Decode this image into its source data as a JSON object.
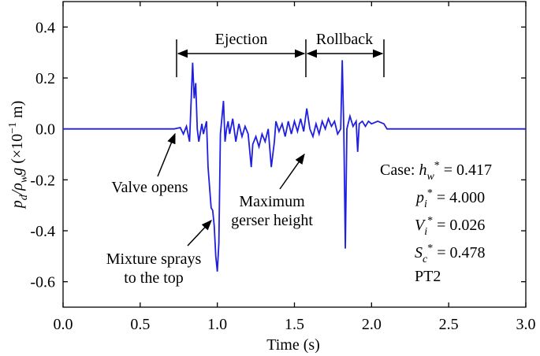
{
  "chart_data": {
    "type": "line",
    "x_label": "Time (s)",
    "y_label": [
      "p",
      "d",
      "/ρ",
      "w",
      "g",
      " (×10",
      "−1",
      " m)"
    ],
    "color": "#1f1fe0",
    "xlim": [
      0,
      3
    ],
    "ylim": [
      -0.7,
      0.5
    ],
    "xticks": [
      {
        "value": 0,
        "label": "0.0"
      },
      0.5,
      {
        "value": 1,
        "label": "1.0"
      },
      1.5,
      {
        "value": 2,
        "label": "2.0"
      },
      2.5,
      {
        "value": 3,
        "label": "3.0"
      }
    ],
    "yticks": [
      -0.6,
      -0.4,
      -0.2,
      {
        "value": 0,
        "label": "0.0"
      },
      0.2,
      0.4
    ],
    "x": [
      0.0,
      0.3,
      0.6,
      0.72,
      0.76,
      0.78,
      0.8,
      0.82,
      0.84,
      0.85,
      0.86,
      0.87,
      0.88,
      0.9,
      0.91,
      0.93,
      0.94,
      0.96,
      0.97,
      0.98,
      0.99,
      1.0,
      1.01,
      1.02,
      1.04,
      1.05,
      1.06,
      1.07,
      1.08,
      1.1,
      1.12,
      1.14,
      1.16,
      1.18,
      1.2,
      1.22,
      1.23,
      1.25,
      1.27,
      1.29,
      1.31,
      1.33,
      1.35,
      1.37,
      1.38,
      1.4,
      1.42,
      1.44,
      1.46,
      1.48,
      1.5,
      1.52,
      1.54,
      1.56,
      1.58,
      1.6,
      1.62,
      1.64,
      1.66,
      1.68,
      1.7,
      1.72,
      1.74,
      1.76,
      1.78,
      1.8,
      1.81,
      1.82,
      1.83,
      1.84,
      1.86,
      1.88,
      1.9,
      1.91,
      1.92,
      1.94,
      1.96,
      1.98,
      2.0,
      2.04,
      2.08,
      2.1,
      2.2,
      2.4,
      2.6,
      2.8,
      3.0
    ],
    "values": [
      0.0,
      0.0,
      0.0,
      0.0,
      0.005,
      -0.02,
      0.01,
      -0.05,
      0.26,
      0.12,
      0.18,
      0.0,
      -0.05,
      0.02,
      -0.02,
      0.03,
      -0.15,
      -0.31,
      -0.32,
      -0.38,
      -0.5,
      -0.56,
      -0.45,
      -0.02,
      0.11,
      -0.05,
      0.0,
      0.03,
      -0.02,
      0.04,
      -0.05,
      0.02,
      -0.03,
      0.01,
      -0.02,
      -0.15,
      -0.06,
      -0.03,
      -0.07,
      -0.02,
      -0.05,
      0.0,
      -0.15,
      -0.05,
      0.03,
      -0.01,
      0.02,
      -0.03,
      0.03,
      -0.02,
      0.03,
      -0.01,
      0.04,
      -0.01,
      0.08,
      0.0,
      -0.03,
      0.02,
      -0.02,
      0.03,
      0.0,
      0.04,
      0.01,
      0.03,
      -0.02,
      0.0,
      0.27,
      0.0,
      -0.47,
      0.0,
      0.05,
      0.01,
      0.03,
      -0.09,
      0.02,
      0.03,
      0.01,
      0.03,
      0.02,
      0.03,
      0.02,
      0.0,
      0.0,
      0.0,
      0.0,
      0.0,
      0.0
    ],
    "annotations": {
      "ejection": "Ejection",
      "rollback": "Rollback",
      "valve": [
        "Valve opens"
      ],
      "mixture": [
        "Mixture sprays",
        "to the top"
      ],
      "maximum": [
        "Maximum",
        "gerser height"
      ],
      "case": [
        [
          "Case: ",
          "h",
          "w",
          "*",
          " = 0.417"
        ],
        [
          "p",
          "i",
          "*",
          " = 4.000"
        ],
        [
          "V",
          "i",
          "*",
          " = 0.026"
        ],
        [
          "S",
          "c",
          "*",
          " = 0.478"
        ],
        [
          "PT2"
        ]
      ]
    }
  }
}
